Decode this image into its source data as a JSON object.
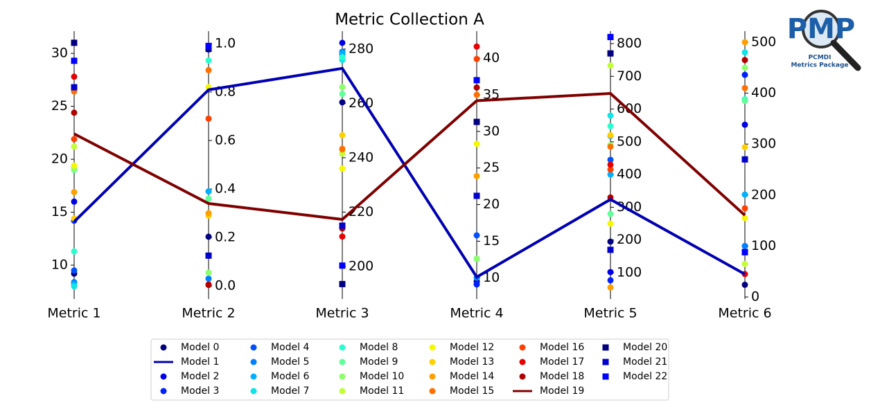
{
  "chart_data": {
    "type": "parallel_coordinates",
    "title": "Metric Collection A",
    "axes": [
      {
        "label": "Metric 1",
        "ylim": [
          6.8,
          32.1
        ],
        "yticks": [
          10,
          15,
          20,
          25,
          30
        ]
      },
      {
        "label": "Metric 2",
        "ylim": [
          -0.054,
          1.051
        ],
        "yticks": [
          {
            "value": 0,
            "label": "0.0"
          },
          0.2,
          0.4,
          0.6,
          0.8,
          {
            "value": 1,
            "label": "1.0"
          }
        ]
      },
      {
        "label": "Metric 3",
        "ylim": [
          188,
          286.6
        ],
        "yticks": [
          200,
          220,
          240,
          260,
          280
        ]
      },
      {
        "label": "Metric 4",
        "ylim": [
          7.1,
          43.7
        ],
        "yticks": [
          10,
          15,
          20,
          25,
          30,
          35,
          40
        ]
      },
      {
        "label": "Metric 5",
        "ylim": [
          19.7,
          838
        ],
        "yticks": [
          100,
          200,
          300,
          400,
          500,
          600,
          700,
          800
        ]
      },
      {
        "label": "Metric 6",
        "ylim": [
          -4,
          521.7
        ],
        "yticks": [
          0,
          100,
          200,
          300,
          400,
          500
        ]
      }
    ],
    "series": [
      {
        "name": "Model 0",
        "color": "#000080",
        "marker": "circle",
        "values": [
          9.2,
          0.203,
          260.4,
          9.5,
          195,
          24
        ]
      },
      {
        "name": "Model 1",
        "color": "#0000b2",
        "marker": "line",
        "values": [
          14.1,
          0.809,
          272.9,
          10.1,
          324,
          44.8
        ]
      },
      {
        "name": "Model 2",
        "color": "#0000e8",
        "marker": "circle",
        "values": [
          16.0,
          0.986,
          282.3,
          9.1,
          102,
          338
        ]
      },
      {
        "name": "Model 3",
        "color": "#0020ff",
        "marker": "circle",
        "values": [
          14.2,
          0.975,
          279,
          9.1,
          77,
          436
        ]
      },
      {
        "name": "Model 4",
        "color": "#0050ff",
        "marker": "circle",
        "values": [
          9.5,
          0.39,
          278,
          15.8,
          445,
          100
        ]
      },
      {
        "name": "Model 5",
        "color": "#0080ff",
        "marker": "circle",
        "values": [
          8.4,
          0.03,
          279,
          10.0,
          518,
          100
        ]
      },
      {
        "name": "Model 6",
        "color": "#00b0ff",
        "marker": "circle",
        "values": [
          8.2,
          0.39,
          278.5,
          12.6,
          400,
          201
        ]
      },
      {
        "name": "Model 7",
        "color": "#10e4e6",
        "marker": "circle",
        "values": [
          8.0,
          0.36,
          276,
          12.6,
          580,
          480
        ]
      },
      {
        "name": "Model 8",
        "color": "#29ffce",
        "marker": "circle",
        "values": [
          11.3,
          0.93,
          277,
          12.6,
          548,
          388
        ]
      },
      {
        "name": "Model 9",
        "color": "#60ff97",
        "marker": "circle",
        "values": [
          19.0,
          0.36,
          263.5,
          12.6,
          280,
          385
        ]
      },
      {
        "name": "Model 10",
        "color": "#8dff6a",
        "marker": "circle",
        "values": [
          19.1,
          0.055,
          266,
          12.6,
          490,
          450
        ]
      },
      {
        "name": "Model 11",
        "color": "#c1ff36",
        "marker": "circle",
        "values": [
          21.2,
          0.82,
          241.5,
          28.3,
          733,
          65
        ]
      },
      {
        "name": "Model 12",
        "color": "#f4f802",
        "marker": "circle",
        "values": [
          19.4,
          0.82,
          236,
          28.3,
          250,
          155
        ]
      },
      {
        "name": "Model 13",
        "color": "#ffd000",
        "marker": "circle",
        "values": [
          14.4,
          0.29,
          248.3,
          23.9,
          520,
          294
        ]
      },
      {
        "name": "Model 14",
        "color": "#ffa000",
        "marker": "circle",
        "values": [
          16.9,
          0.3,
          243,
          23.9,
          55,
          500
        ]
      },
      {
        "name": "Model 15",
        "color": "#ff7000",
        "marker": "circle",
        "values": [
          26.4,
          0.89,
          243.3,
          35.0,
          485,
          410
        ]
      },
      {
        "name": "Model 16",
        "color": "#ff4000",
        "marker": "circle",
        "values": [
          21.9,
          0.69,
          214,
          39.9,
          415,
          174
        ]
      },
      {
        "name": "Model 17",
        "color": "#e80000",
        "marker": "circle",
        "values": [
          27.8,
          0.006,
          211,
          41.6,
          430,
          45
        ]
      },
      {
        "name": "Model 18",
        "color": "#b20000",
        "marker": "circle",
        "values": [
          24.4,
          0.004,
          214,
          36.0,
          330,
          465
        ]
      },
      {
        "name": "Model 19",
        "color": "#7f0000",
        "marker": "line",
        "values": [
          22.4,
          0.34,
          217.3,
          34.2,
          647.6,
          160.3
        ]
      },
      {
        "name": "Model 20",
        "color": "#000080",
        "marker": "square",
        "values": [
          31.0,
          0.978,
          193.5,
          31.3,
          770,
          88
        ]
      },
      {
        "name": "Model 21",
        "color": "#0000cd",
        "marker": "square",
        "values": [
          26.8,
          0.125,
          215,
          21.2,
          170,
          270
        ]
      },
      {
        "name": "Model 22",
        "color": "#0000ff",
        "marker": "square",
        "values": [
          29.3,
          0.99,
          200.3,
          37.0,
          820,
          88
        ]
      }
    ]
  },
  "logo": {
    "title": "PMP",
    "line1": "PCMDI",
    "line2": "Metrics Package"
  }
}
